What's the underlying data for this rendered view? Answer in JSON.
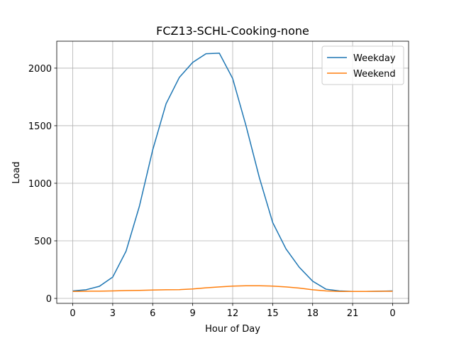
{
  "chart_data": {
    "type": "line",
    "title": "FCZ13-SCHL-Cooking-none",
    "x_label": "Hour of Day",
    "y_label": "Load",
    "x": [
      0,
      1,
      2,
      3,
      4,
      5,
      6,
      7,
      8,
      9,
      10,
      11,
      12,
      13,
      14,
      15,
      16,
      17,
      18,
      19,
      20,
      21,
      22,
      23,
      24
    ],
    "series": [
      {
        "name": "Weekday",
        "color": "#1f77b4",
        "values": [
          65,
          75,
          105,
          185,
          410,
          800,
          1290,
          1690,
          1920,
          2050,
          2125,
          2130,
          1910,
          1500,
          1050,
          660,
          430,
          270,
          150,
          80,
          65,
          60,
          60,
          62,
          65
        ]
      },
      {
        "name": "Weekend",
        "color": "#ff7f0e",
        "values": [
          60,
          62,
          63,
          65,
          68,
          70,
          73,
          75,
          76,
          82,
          92,
          100,
          107,
          110,
          110,
          107,
          100,
          90,
          75,
          65,
          60,
          60,
          60,
          62,
          62
        ]
      }
    ],
    "xlim": [
      -1.2,
      25.2
    ],
    "ylim": [
      -43,
      2234
    ],
    "xticks": [
      0,
      3,
      6,
      9,
      12,
      15,
      18,
      21,
      {
        "value": 24,
        "label": "0"
      }
    ],
    "yticks": [
      0,
      500,
      1000,
      1500,
      2000
    ],
    "grid": true,
    "legend": "upper right"
  }
}
